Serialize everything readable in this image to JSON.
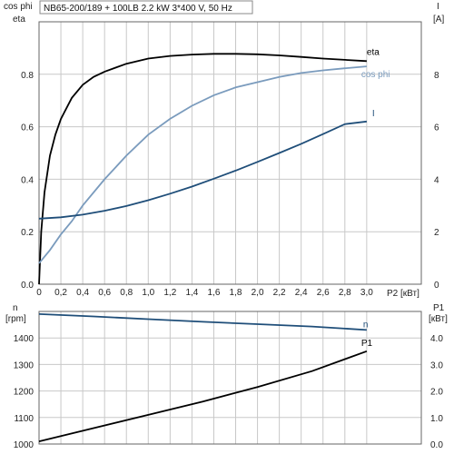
{
  "chart_data": [
    {
      "type": "line",
      "title": "NB65-200/189 + 100LB   2.2 kW   3*400 V, 50 Hz",
      "left_axis_title_1": "cos phi",
      "left_axis_title_2": "eta",
      "right_axis_title_1": "I",
      "right_axis_title_2": "[A]",
      "xlabel": "P2 [кВт]",
      "xlim": [
        0,
        3.5
      ],
      "ylim_left": [
        0,
        1.0
      ],
      "ylim_right": [
        0,
        10
      ],
      "x_ticks": [
        "0",
        "0,2",
        "0,4",
        "0,6",
        "0,8",
        "1,0",
        "1,2",
        "1,4",
        "1,6",
        "1,8",
        "2,0",
        "2,2",
        "2,4",
        "2,6",
        "2,8",
        "3,0"
      ],
      "y_ticks_left": [
        "0.0",
        "0.2",
        "0.4",
        "0.6",
        "0.8"
      ],
      "y_ticks_right": [
        "0",
        "2",
        "4",
        "6",
        "8"
      ],
      "grid": true,
      "series": [
        {
          "name": "eta",
          "axis": "left",
          "color": "#000000",
          "x": [
            0,
            0.02,
            0.05,
            0.1,
            0.15,
            0.2,
            0.3,
            0.4,
            0.5,
            0.6,
            0.8,
            1.0,
            1.2,
            1.4,
            1.6,
            1.8,
            2.0,
            2.2,
            2.4,
            2.6,
            2.8,
            3.0
          ],
          "values": [
            0,
            0.2,
            0.35,
            0.49,
            0.57,
            0.63,
            0.71,
            0.76,
            0.79,
            0.81,
            0.84,
            0.86,
            0.87,
            0.875,
            0.878,
            0.878,
            0.876,
            0.872,
            0.866,
            0.86,
            0.855,
            0.85
          ]
        },
        {
          "name": "cos phi",
          "axis": "left",
          "color": "#7a9bbd",
          "x": [
            0,
            0.1,
            0.2,
            0.3,
            0.4,
            0.6,
            0.8,
            1.0,
            1.2,
            1.4,
            1.6,
            1.8,
            2.0,
            2.2,
            2.4,
            2.6,
            2.8,
            3.0
          ],
          "values": [
            0.08,
            0.13,
            0.19,
            0.24,
            0.3,
            0.4,
            0.49,
            0.57,
            0.63,
            0.68,
            0.72,
            0.75,
            0.77,
            0.79,
            0.805,
            0.815,
            0.823,
            0.83
          ]
        },
        {
          "name": "I",
          "axis": "right",
          "color": "#1f4e79",
          "x": [
            0,
            0.2,
            0.4,
            0.6,
            0.8,
            1.0,
            1.2,
            1.4,
            1.6,
            1.8,
            2.0,
            2.2,
            2.4,
            2.6,
            2.8,
            3.0
          ],
          "values": [
            2.5,
            2.55,
            2.65,
            2.8,
            2.98,
            3.2,
            3.45,
            3.72,
            4.02,
            4.33,
            4.66,
            5.0,
            5.35,
            5.72,
            6.1,
            6.2
          ]
        }
      ]
    },
    {
      "type": "line",
      "left_axis_title_1": "n",
      "left_axis_title_2": "[rpm]",
      "right_axis_title_1": "P1",
      "right_axis_title_2": "[кВт]",
      "xlim": [
        0,
        3.5
      ],
      "ylim_left": [
        1000,
        1500
      ],
      "ylim_right": [
        0,
        5.0
      ],
      "y_ticks_left": [
        "1000",
        "1100",
        "1200",
        "1300",
        "1400"
      ],
      "y_ticks_right": [
        "0.0",
        "1.0",
        "2.0",
        "3.0",
        "4.0"
      ],
      "grid": true,
      "series": [
        {
          "name": "n",
          "axis": "left",
          "color": "#1f4e79",
          "x": [
            0,
            0.5,
            1.0,
            1.5,
            2.0,
            2.5,
            3.0
          ],
          "values": [
            1490,
            1481,
            1471,
            1461,
            1452,
            1443,
            1430
          ]
        },
        {
          "name": "P1",
          "axis": "right",
          "color": "#000000",
          "x": [
            0,
            0.5,
            1.0,
            1.5,
            2.0,
            2.5,
            3.0
          ],
          "values": [
            0.1,
            0.6,
            1.1,
            1.6,
            2.15,
            2.75,
            3.5
          ]
        }
      ]
    }
  ]
}
